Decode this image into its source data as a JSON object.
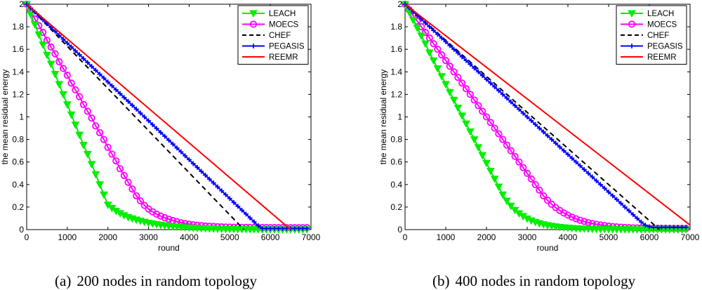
{
  "chart_data": [
    {
      "type": "line",
      "caption_tag": "(a)",
      "caption": "200 nodes in random topology",
      "xlabel": "round",
      "ylabel": "the mean residual energy",
      "xlim": [
        0,
        7000
      ],
      "ylim": [
        0,
        2
      ],
      "xticks": [
        0,
        1000,
        2000,
        3000,
        4000,
        5000,
        6000,
        7000
      ],
      "yticks": [
        0,
        0.2,
        0.4,
        0.6,
        0.8,
        1,
        1.2,
        1.4,
        1.6,
        1.8,
        2
      ],
      "xtick_labels": [
        "0",
        "1000",
        "2000",
        "3000",
        "4000",
        "5000",
        "6000",
        "7000"
      ],
      "ytick_labels": [
        "0",
        "0.2",
        "0.4",
        "0.6",
        "0.8",
        "1",
        "1.2",
        "1.4",
        "1.6",
        "1.8",
        "2"
      ],
      "legend_position": "top-right",
      "series": [
        {
          "name": "LEACH",
          "color": "#00ee00",
          "marker": "triangle-down",
          "dash": "solid",
          "x": [
            0,
            100,
            200,
            300,
            400,
            500,
            600,
            700,
            800,
            900,
            1000,
            1100,
            1200,
            1300,
            1400,
            1500,
            1600,
            1700,
            1800,
            1900,
            2000,
            2100,
            2200,
            2300,
            2400,
            2500,
            2600,
            2700,
            2800,
            2900,
            3000,
            3100,
            3200,
            3300,
            3400,
            3500,
            3600,
            3700,
            3800,
            3900,
            4000,
            4100,
            4200,
            4300,
            4400,
            4500,
            4600,
            4700,
            4800,
            4900,
            5000,
            5100,
            5200,
            5300,
            5400,
            5500,
            5600,
            5700,
            5800,
            5900,
            6000,
            6100,
            6200,
            6300,
            6400,
            6500,
            6600,
            6700,
            6800,
            6900
          ],
          "y": [
            2.0,
            1.91,
            1.82,
            1.73,
            1.64,
            1.55,
            1.47,
            1.38,
            1.29,
            1.2,
            1.11,
            1.02,
            0.93,
            0.84,
            0.75,
            0.67,
            0.58,
            0.49,
            0.4,
            0.31,
            0.22,
            0.19,
            0.165,
            0.145,
            0.126,
            0.11,
            0.098,
            0.087,
            0.077,
            0.068,
            0.06,
            0.053,
            0.047,
            0.041,
            0.036,
            0.032,
            0.028,
            0.025,
            0.022,
            0.019,
            0.017,
            0.015,
            0.013,
            0.011,
            0.01,
            0.009,
            0.008,
            0.007,
            0.006,
            0.005,
            0.005,
            0.004,
            0.004,
            0.003,
            0.003,
            0.003,
            0.002,
            0.002,
            0.002,
            0.002,
            0.001,
            0.001,
            0.001,
            0.001,
            0.001,
            0.001,
            0.001,
            0.001,
            0.001,
            0.001
          ]
        },
        {
          "name": "MOECS",
          "color": "#ff00ff",
          "marker": "circle",
          "dash": "solid",
          "x": [
            0,
            100,
            200,
            300,
            400,
            500,
            600,
            700,
            800,
            900,
            1000,
            1100,
            1200,
            1300,
            1400,
            1500,
            1600,
            1700,
            1800,
            1900,
            2000,
            2100,
            2200,
            2300,
            2400,
            2500,
            2600,
            2700,
            2800,
            2900,
            3000,
            3100,
            3200,
            3300,
            3400,
            3500,
            3600,
            3700,
            3800,
            3900,
            4000,
            4100,
            4200,
            4300,
            4400,
            4500,
            4600,
            4700,
            4800,
            4900,
            5000,
            5100,
            5200,
            5300,
            5400,
            5500,
            5600,
            5700,
            5800,
            5900,
            6000,
            6100,
            6200,
            6300,
            6400,
            6500,
            6600,
            6700,
            6800,
            6900
          ],
          "y": [
            2.0,
            1.94,
            1.87,
            1.81,
            1.75,
            1.68,
            1.62,
            1.56,
            1.49,
            1.43,
            1.37,
            1.3,
            1.24,
            1.18,
            1.11,
            1.05,
            0.99,
            0.92,
            0.86,
            0.8,
            0.73,
            0.67,
            0.61,
            0.54,
            0.48,
            0.42,
            0.36,
            0.3,
            0.255,
            0.215,
            0.183,
            0.158,
            0.137,
            0.12,
            0.105,
            0.092,
            0.08,
            0.07,
            0.061,
            0.054,
            0.048,
            0.043,
            0.039,
            0.035,
            0.032,
            0.03,
            0.028,
            0.026,
            0.024,
            0.023,
            0.022,
            0.021,
            0.021,
            0.02,
            0.02,
            0.02,
            0.019,
            0.019,
            0.019,
            0.018,
            0.018,
            0.018,
            0.018,
            0.018,
            0.017,
            0.017,
            0.017,
            0.017,
            0.017,
            0.017
          ]
        },
        {
          "name": "CHEF",
          "color": "#000000",
          "marker": "none",
          "dash": "dashed",
          "x": [
            0,
            5350
          ],
          "y": [
            2.0,
            0.0
          ]
        },
        {
          "name": "PEGASIS",
          "color": "#0000ff",
          "marker": "plus",
          "dash": "solid",
          "x": [
            0,
            100,
            200,
            300,
            400,
            500,
            600,
            700,
            800,
            900,
            1000,
            1100,
            1200,
            1300,
            1400,
            1500,
            1600,
            1700,
            1800,
            1900,
            2000,
            2100,
            2200,
            2300,
            2400,
            2500,
            2600,
            2700,
            2800,
            2900,
            3000,
            3100,
            3200,
            3300,
            3400,
            3500,
            3600,
            3700,
            3800,
            3900,
            4000,
            4100,
            4200,
            4300,
            4400,
            4500,
            4600,
            4700,
            4800,
            4900,
            5000,
            5100,
            5200,
            5300,
            5400,
            5500,
            5600,
            5700,
            5800,
            5900,
            6000,
            6100,
            6200,
            6300,
            6400,
            6500,
            6600,
            6700,
            6800,
            6900
          ],
          "y": [
            2.0,
            1.966,
            1.931,
            1.897,
            1.862,
            1.828,
            1.793,
            1.759,
            1.724,
            1.69,
            1.655,
            1.621,
            1.586,
            1.552,
            1.517,
            1.483,
            1.448,
            1.414,
            1.379,
            1.345,
            1.31,
            1.276,
            1.241,
            1.207,
            1.172,
            1.138,
            1.103,
            1.069,
            1.034,
            1.0,
            0.966,
            0.931,
            0.897,
            0.862,
            0.828,
            0.793,
            0.759,
            0.724,
            0.69,
            0.655,
            0.621,
            0.586,
            0.552,
            0.517,
            0.483,
            0.448,
            0.414,
            0.379,
            0.345,
            0.31,
            0.276,
            0.241,
            0.207,
            0.172,
            0.138,
            0.103,
            0.069,
            0.034,
            0.01,
            0.01,
            0.01,
            0.01,
            0.01,
            0.01,
            0.01,
            0.01,
            0.01,
            0.01,
            0.01,
            0.01
          ]
        },
        {
          "name": "REEMR",
          "color": "#ff0000",
          "marker": "none",
          "dash": "solid",
          "x": [
            0,
            6500
          ],
          "y": [
            2.0,
            0.0
          ]
        }
      ]
    },
    {
      "type": "line",
      "caption_tag": "(b)",
      "caption": "400 nodes in random topology",
      "xlabel": "round",
      "ylabel": "the mean residual energy",
      "xlim": [
        0,
        7000
      ],
      "ylim": [
        0,
        2
      ],
      "xticks": [
        0,
        1000,
        2000,
        3000,
        4000,
        5000,
        6000,
        7000
      ],
      "yticks": [
        0,
        0.2,
        0.4,
        0.6,
        0.8,
        1,
        1.2,
        1.4,
        1.6,
        1.8,
        2
      ],
      "xtick_labels": [
        "0",
        "1000",
        "2000",
        "3000",
        "4000",
        "5000",
        "6000",
        "7000"
      ],
      "ytick_labels": [
        "0",
        "0.2",
        "0.4",
        "0.6",
        "0.8",
        "1",
        "1.2",
        "1.4",
        "1.6",
        "1.8",
        "2"
      ],
      "legend_position": "top-right",
      "series": [
        {
          "name": "LEACH",
          "color": "#00ee00",
          "marker": "triangle-down",
          "dash": "solid",
          "x": [
            0,
            100,
            200,
            300,
            400,
            500,
            600,
            700,
            800,
            900,
            1000,
            1100,
            1200,
            1300,
            1400,
            1500,
            1600,
            1700,
            1800,
            1900,
            2000,
            2100,
            2200,
            2300,
            2400,
            2500,
            2600,
            2700,
            2800,
            2900,
            3000,
            3100,
            3200,
            3300,
            3400,
            3500,
            3600,
            3700,
            3800,
            3900,
            4000,
            4100,
            4200,
            4300,
            4400,
            4500,
            4600,
            4700,
            4800,
            4900,
            5000,
            5100,
            5200,
            5300,
            5400,
            5500,
            5600,
            5700,
            5800,
            5900,
            6000,
            6100,
            6200,
            6300,
            6400,
            6500,
            6600,
            6700,
            6800,
            6900
          ],
          "y": [
            2.0,
            1.93,
            1.86,
            1.79,
            1.72,
            1.65,
            1.57,
            1.5,
            1.43,
            1.36,
            1.29,
            1.22,
            1.15,
            1.08,
            1.01,
            0.94,
            0.87,
            0.8,
            0.73,
            0.66,
            0.59,
            0.52,
            0.45,
            0.38,
            0.31,
            0.255,
            0.21,
            0.173,
            0.143,
            0.118,
            0.097,
            0.08,
            0.066,
            0.055,
            0.046,
            0.038,
            0.032,
            0.027,
            0.022,
            0.019,
            0.016,
            0.013,
            0.011,
            0.009,
            0.008,
            0.007,
            0.006,
            0.005,
            0.004,
            0.004,
            0.003,
            0.003,
            0.002,
            0.002,
            0.002,
            0.002,
            0.001,
            0.001,
            0.001,
            0.001,
            0.001,
            0.001,
            0.001,
            0.001,
            0.001,
            0.001,
            0.001,
            0.001,
            0.001,
            0.001
          ]
        },
        {
          "name": "MOECS",
          "color": "#ff00ff",
          "marker": "circle",
          "dash": "solid",
          "x": [
            0,
            100,
            200,
            300,
            400,
            500,
            600,
            700,
            800,
            900,
            1000,
            1100,
            1200,
            1300,
            1400,
            1500,
            1600,
            1700,
            1800,
            1900,
            2000,
            2100,
            2200,
            2300,
            2400,
            2500,
            2600,
            2700,
            2800,
            2900,
            3000,
            3100,
            3200,
            3300,
            3400,
            3500,
            3600,
            3700,
            3800,
            3900,
            4000,
            4100,
            4200,
            4300,
            4400,
            4500,
            4600,
            4700,
            4800,
            4900,
            5000,
            5100,
            5200,
            5300,
            5400,
            5500,
            5600,
            5700,
            5800,
            5900,
            6000,
            6100,
            6200,
            6300,
            6400,
            6500,
            6600,
            6700,
            6800,
            6900
          ],
          "y": [
            2.0,
            1.95,
            1.9,
            1.85,
            1.8,
            1.75,
            1.7,
            1.65,
            1.6,
            1.55,
            1.5,
            1.45,
            1.4,
            1.35,
            1.3,
            1.25,
            1.2,
            1.15,
            1.1,
            1.05,
            1.0,
            0.95,
            0.9,
            0.85,
            0.8,
            0.75,
            0.7,
            0.65,
            0.6,
            0.55,
            0.5,
            0.45,
            0.4,
            0.35,
            0.3,
            0.26,
            0.225,
            0.195,
            0.17,
            0.148,
            0.128,
            0.111,
            0.096,
            0.083,
            0.072,
            0.062,
            0.054,
            0.047,
            0.041,
            0.036,
            0.031,
            0.027,
            0.024,
            0.021,
            0.019,
            0.017,
            0.016,
            0.015,
            0.014,
            0.013,
            0.012,
            0.012,
            0.011,
            0.011,
            0.011,
            0.01,
            0.01,
            0.01,
            0.01,
            0.01
          ]
        },
        {
          "name": "CHEF",
          "color": "#000000",
          "marker": "none",
          "dash": "dashed",
          "x": [
            0,
            6250
          ],
          "y": [
            2.0,
            0.0
          ]
        },
        {
          "name": "PEGASIS",
          "color": "#0000ff",
          "marker": "plus",
          "dash": "solid",
          "x": [
            0,
            100,
            200,
            300,
            400,
            500,
            600,
            700,
            800,
            900,
            1000,
            1100,
            1200,
            1300,
            1400,
            1500,
            1600,
            1700,
            1800,
            1900,
            2000,
            2100,
            2200,
            2300,
            2400,
            2500,
            2600,
            2700,
            2800,
            2900,
            3000,
            3100,
            3200,
            3300,
            3400,
            3500,
            3600,
            3700,
            3800,
            3900,
            4000,
            4100,
            4200,
            4300,
            4400,
            4500,
            4600,
            4700,
            4800,
            4900,
            5000,
            5100,
            5200,
            5300,
            5400,
            5500,
            5600,
            5700,
            5800,
            5900,
            6000,
            6100,
            6200,
            6300,
            6400,
            6500,
            6600,
            6700,
            6800,
            6900
          ],
          "y": [
            2.0,
            1.967,
            1.933,
            1.9,
            1.867,
            1.833,
            1.8,
            1.767,
            1.733,
            1.7,
            1.667,
            1.633,
            1.6,
            1.567,
            1.533,
            1.5,
            1.467,
            1.433,
            1.4,
            1.367,
            1.333,
            1.3,
            1.267,
            1.233,
            1.2,
            1.167,
            1.133,
            1.1,
            1.067,
            1.033,
            1.0,
            0.967,
            0.933,
            0.9,
            0.867,
            0.833,
            0.8,
            0.767,
            0.733,
            0.7,
            0.667,
            0.633,
            0.6,
            0.567,
            0.533,
            0.5,
            0.467,
            0.433,
            0.4,
            0.367,
            0.333,
            0.3,
            0.267,
            0.233,
            0.2,
            0.167,
            0.133,
            0.1,
            0.067,
            0.04,
            0.025,
            0.02,
            0.02,
            0.02,
            0.02,
            0.02,
            0.02,
            0.02,
            0.02,
            0.02
          ]
        },
        {
          "name": "REEMR",
          "color": "#ff0000",
          "marker": "none",
          "dash": "solid",
          "x": [
            0,
            7000
          ],
          "y": [
            2.0,
            0.04
          ]
        }
      ]
    }
  ]
}
